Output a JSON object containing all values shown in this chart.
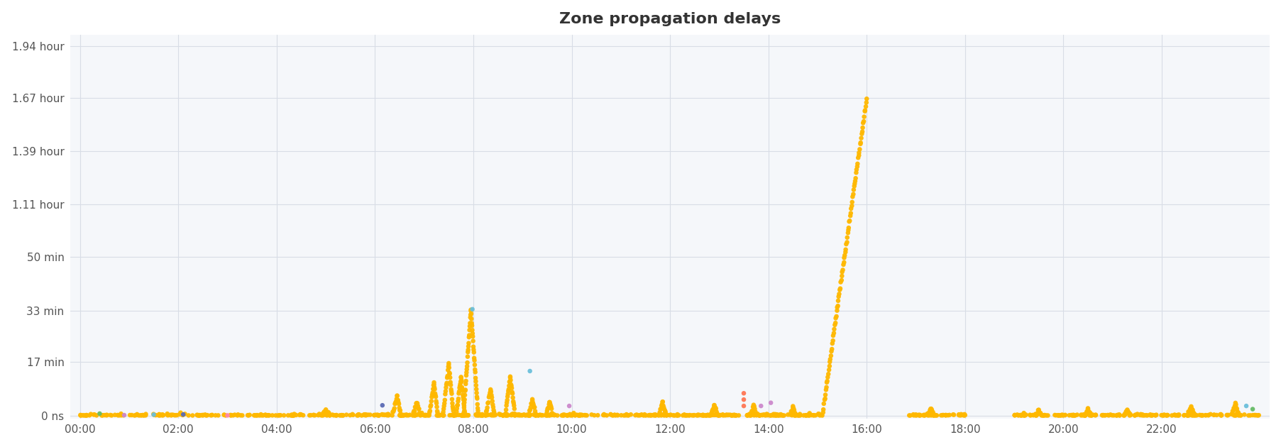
{
  "title": "Zone propagation delays",
  "background_color": "#ffffff",
  "plot_bg_color": "#f5f7fa",
  "dot_color_main": "#FFB800",
  "dot_color_special": [
    "#5B6BB5",
    "#6BBFDB",
    "#FF7755",
    "#66BB66",
    "#CC88CC",
    "#FF88AA",
    "#20B2AA"
  ],
  "ytick_labels": [
    "0 ns",
    "17 min",
    "33 min",
    "50 min",
    "1.11 hour",
    "1.39 hour",
    "1.67 hour",
    "1.94 hour"
  ],
  "ytick_values": [
    0,
    17,
    33,
    50,
    66.6,
    83.4,
    100.2,
    116.4
  ],
  "xtick_labels": [
    "00:00",
    "02:00",
    "04:00",
    "06:00",
    "08:00",
    "10:00",
    "12:00",
    "14:00",
    "16:00",
    "18:00",
    "20:00",
    "22:00"
  ],
  "xtick_values": [
    0,
    2,
    4,
    6,
    8,
    10,
    12,
    14,
    16,
    18,
    20,
    22
  ],
  "xlim": [
    -0.2,
    24.2
  ],
  "ylim": [
    -1,
    120
  ],
  "title_fontsize": 16,
  "title_color": "#333333",
  "tick_color": "#555555",
  "grid_color": "#d8dde6"
}
